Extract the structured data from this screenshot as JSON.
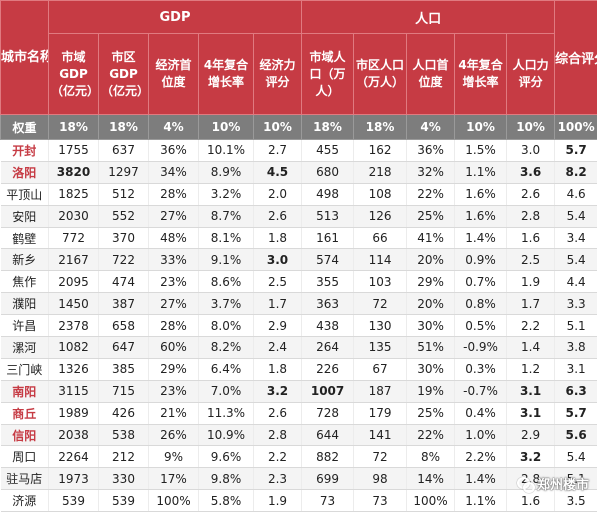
{
  "header": {
    "city_label": "城市名称",
    "gdp_group": "GDP",
    "pop_group": "人口",
    "overall": "综合评分",
    "gdp_cols": [
      "市域GDP（亿元）",
      "市区GDP（亿元）",
      "经济首位度",
      "4年复合增长率",
      "经济力评分"
    ],
    "pop_cols": [
      "市域人口（万人）",
      "市区人口（万人）",
      "人口首位度",
      "4年复合增长率",
      "人口力评分"
    ]
  },
  "weights": {
    "label": "权重",
    "values": [
      "18%",
      "18%",
      "4%",
      "10%",
      "10%",
      "18%",
      "18%",
      "4%",
      "10%",
      "10%",
      "100%"
    ]
  },
  "rows": [
    {
      "city": "开封",
      "hl": true,
      "v": [
        "1755",
        "637",
        "36%",
        "10.1%",
        "2.7",
        "455",
        "162",
        "36%",
        "1.5%",
        "3.0",
        "5.7"
      ],
      "red": [
        10
      ]
    },
    {
      "city": "洛阳",
      "hl": true,
      "v": [
        "3820",
        "1297",
        "34%",
        "8.9%",
        "4.5",
        "680",
        "218",
        "32%",
        "1.1%",
        "3.6",
        "8.2"
      ],
      "red": [
        0,
        4,
        9,
        10
      ]
    },
    {
      "city": "平顶山",
      "hl": false,
      "v": [
        "1825",
        "512",
        "28%",
        "3.2%",
        "2.0",
        "498",
        "108",
        "22%",
        "1.6%",
        "2.6",
        "4.6"
      ],
      "red": []
    },
    {
      "city": "安阳",
      "hl": false,
      "v": [
        "2030",
        "552",
        "27%",
        "8.7%",
        "2.6",
        "513",
        "126",
        "25%",
        "1.6%",
        "2.8",
        "5.4"
      ],
      "red": []
    },
    {
      "city": "鹤壁",
      "hl": false,
      "v": [
        "772",
        "370",
        "48%",
        "8.1%",
        "1.8",
        "161",
        "66",
        "41%",
        "1.4%",
        "1.6",
        "3.4"
      ],
      "red": []
    },
    {
      "city": "新乡",
      "hl": false,
      "v": [
        "2167",
        "722",
        "33%",
        "9.1%",
        "3.0",
        "574",
        "114",
        "20%",
        "0.9%",
        "2.5",
        "5.4"
      ],
      "red": [
        4
      ]
    },
    {
      "city": "焦作",
      "hl": false,
      "v": [
        "2095",
        "474",
        "23%",
        "8.6%",
        "2.5",
        "355",
        "103",
        "29%",
        "0.7%",
        "1.9",
        "4.4"
      ],
      "red": []
    },
    {
      "city": "濮阳",
      "hl": false,
      "v": [
        "1450",
        "387",
        "27%",
        "3.7%",
        "1.7",
        "363",
        "72",
        "20%",
        "0.8%",
        "1.7",
        "3.3"
      ],
      "red": []
    },
    {
      "city": "许昌",
      "hl": false,
      "v": [
        "2378",
        "658",
        "28%",
        "8.0%",
        "2.9",
        "438",
        "130",
        "30%",
        "0.5%",
        "2.2",
        "5.1"
      ],
      "red": []
    },
    {
      "city": "漯河",
      "hl": false,
      "v": [
        "1082",
        "647",
        "60%",
        "8.2%",
        "2.4",
        "264",
        "135",
        "51%",
        "-0.9%",
        "1.4",
        "3.8"
      ],
      "red": []
    },
    {
      "city": "三门峡",
      "hl": false,
      "v": [
        "1326",
        "385",
        "29%",
        "6.4%",
        "1.8",
        "226",
        "67",
        "30%",
        "0.3%",
        "1.2",
        "3.1"
      ],
      "red": []
    },
    {
      "city": "南阳",
      "hl": true,
      "v": [
        "3115",
        "715",
        "23%",
        "7.0%",
        "3.2",
        "1007",
        "187",
        "19%",
        "-0.7%",
        "3.1",
        "6.3"
      ],
      "red": [
        4,
        5,
        9,
        10
      ]
    },
    {
      "city": "商丘",
      "hl": true,
      "v": [
        "1989",
        "426",
        "21%",
        "11.3%",
        "2.6",
        "728",
        "179",
        "25%",
        "0.4%",
        "3.1",
        "5.7"
      ],
      "red": [
        9,
        10
      ]
    },
    {
      "city": "信阳",
      "hl": true,
      "v": [
        "2038",
        "538",
        "26%",
        "10.9%",
        "2.8",
        "644",
        "141",
        "22%",
        "1.0%",
        "2.9",
        "5.6"
      ],
      "red": [
        10
      ]
    },
    {
      "city": "周口",
      "hl": false,
      "v": [
        "2264",
        "212",
        "9%",
        "9.6%",
        "2.2",
        "882",
        "72",
        "8%",
        "2.2%",
        "3.2",
        "5.4"
      ],
      "red": [
        9
      ]
    },
    {
      "city": "驻马店",
      "hl": false,
      "v": [
        "1973",
        "330",
        "17%",
        "9.8%",
        "2.3",
        "699",
        "98",
        "14%",
        "1.4%",
        "2.8",
        "5.1"
      ],
      "red": []
    },
    {
      "city": "济源",
      "hl": false,
      "v": [
        "539",
        "539",
        "100%",
        "5.8%",
        "1.9",
        "73",
        "73",
        "100%",
        "1.1%",
        "1.6",
        "3.5"
      ],
      "red": []
    }
  ],
  "watermark": "郑州楼市"
}
